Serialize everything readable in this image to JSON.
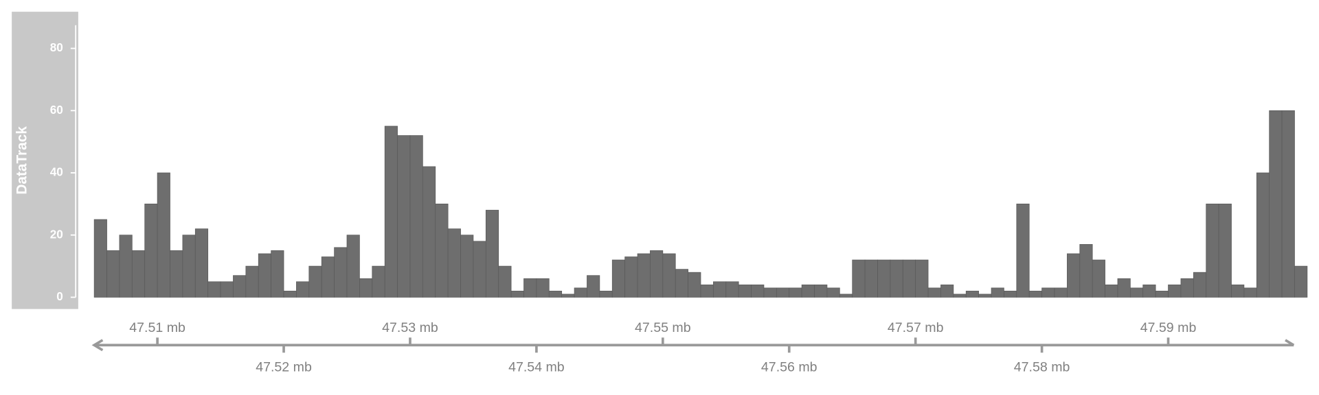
{
  "chart_data": {
    "type": "histogram",
    "track_title": "DataTrack",
    "bins": [
      47.505,
      47.506,
      47.507,
      47.508,
      47.509,
      47.51,
      47.511,
      47.512,
      47.513,
      47.514,
      47.515,
      47.516,
      47.517,
      47.518,
      47.519,
      47.52,
      47.521,
      47.522,
      47.523,
      47.524,
      47.525,
      47.526,
      47.527,
      47.528,
      47.529,
      47.53,
      47.531,
      47.532,
      47.533,
      47.534,
      47.535,
      47.536,
      47.537,
      47.538,
      47.539,
      47.54,
      47.541,
      47.542,
      47.543,
      47.544,
      47.545,
      47.546,
      47.547,
      47.548,
      47.549,
      47.55,
      47.551,
      47.552,
      47.553,
      47.554,
      47.555,
      47.556,
      47.557,
      47.558,
      47.559,
      47.56,
      47.561,
      47.562,
      47.563,
      47.564,
      47.565,
      47.566,
      47.567,
      47.568,
      47.569,
      47.57,
      47.571,
      47.572,
      47.573,
      47.574,
      47.575,
      47.576,
      47.577,
      47.578,
      47.579,
      47.58,
      47.581,
      47.582,
      47.583,
      47.584,
      47.585,
      47.586,
      47.587,
      47.588,
      47.589,
      47.59,
      47.591,
      47.592,
      47.593,
      47.594,
      47.595,
      47.596,
      47.597,
      47.598,
      47.599,
      47.6,
      47.601
    ],
    "values": [
      25,
      15,
      20,
      15,
      30,
      40,
      15,
      20,
      22,
      5,
      5,
      7,
      10,
      14,
      15,
      2,
      5,
      10,
      13,
      16,
      20,
      6,
      10,
      55,
      52,
      52,
      42,
      30,
      22,
      20,
      18,
      28,
      10,
      2,
      6,
      6,
      2,
      1,
      3,
      7,
      2,
      12,
      13,
      14,
      15,
      14,
      9,
      8,
      4,
      5,
      5,
      4,
      4,
      3,
      3,
      3,
      4,
      4,
      3,
      1,
      12,
      12,
      12,
      12,
      12,
      12,
      3,
      4,
      1,
      2,
      1,
      3,
      2,
      30,
      2,
      3,
      3,
      14,
      17,
      12,
      4,
      6,
      3,
      4,
      2,
      4,
      6,
      8,
      30,
      30,
      4,
      3,
      40,
      60,
      60,
      10
    ],
    "color": "#6e6e6e",
    "xlim": [
      47.505,
      47.601
    ],
    "ylim": [
      0,
      88
    ],
    "yticks": [
      0,
      20,
      40,
      60,
      80
    ],
    "xticks": [
      {
        "value": 47.51,
        "label": "47.51 mb"
      },
      {
        "value": 47.52,
        "label": "47.52 mb"
      },
      {
        "value": 47.53,
        "label": "47.53 mb"
      },
      {
        "value": 47.54,
        "label": "47.54 mb"
      },
      {
        "value": 47.55,
        "label": "47.55 mb"
      },
      {
        "value": 47.56,
        "label": "47.56 mb"
      },
      {
        "value": 47.57,
        "label": "47.57 mb"
      },
      {
        "value": 47.58,
        "label": "47.58 mb"
      },
      {
        "value": 47.59,
        "label": "47.59 mb"
      }
    ]
  }
}
